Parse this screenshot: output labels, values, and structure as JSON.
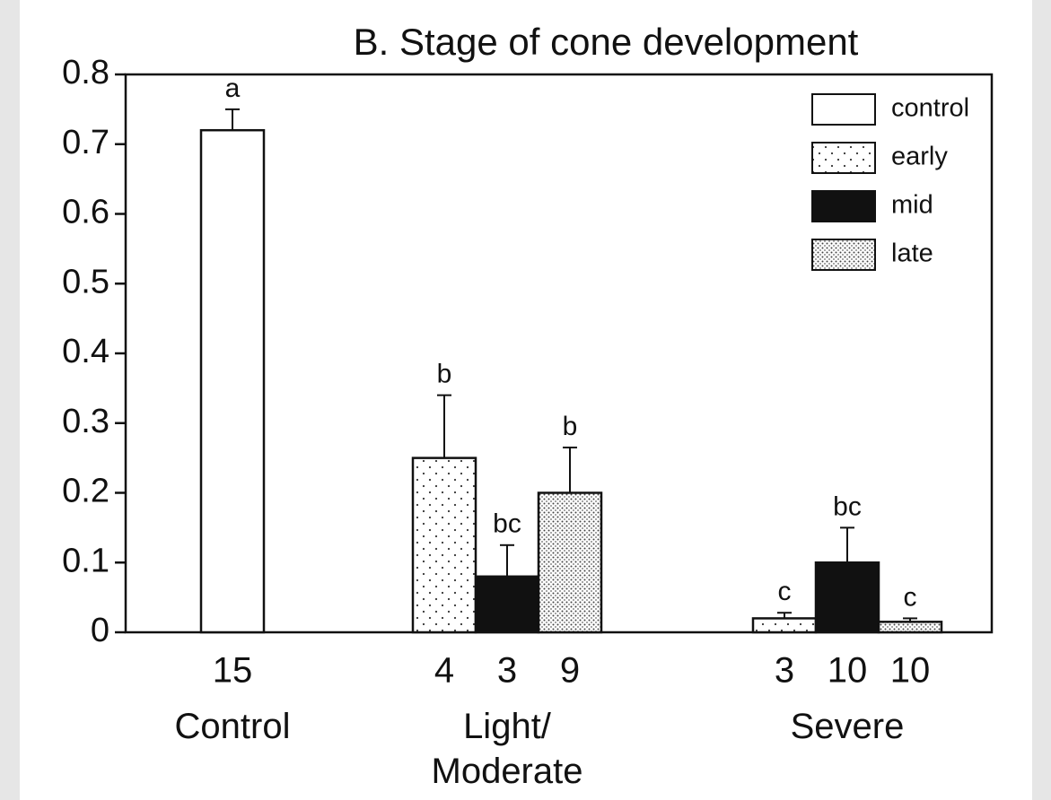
{
  "chart_data": {
    "type": "bar",
    "title": "B.  Stage of cone development",
    "categories": [
      "Control",
      "Light/\nModerate",
      "Severe"
    ],
    "series": [
      {
        "name": "control",
        "color": "#ffffff",
        "pattern": "none",
        "values": [
          0.72,
          null,
          null
        ],
        "errors": [
          0.03,
          null,
          null
        ],
        "letters": [
          "a",
          null,
          null
        ],
        "n": [
          15,
          null,
          null
        ]
      },
      {
        "name": "early",
        "color": "#ffffff",
        "pattern": "sparse-dots",
        "values": [
          null,
          0.25,
          0.02
        ],
        "errors": [
          null,
          0.09,
          0.008
        ],
        "letters": [
          null,
          "b",
          "c"
        ],
        "n": [
          null,
          4,
          3
        ]
      },
      {
        "name": "mid",
        "color": "#111111",
        "pattern": "none",
        "values": [
          null,
          0.08,
          0.1
        ],
        "errors": [
          null,
          0.045,
          0.05
        ],
        "letters": [
          null,
          "bc",
          "bc"
        ],
        "n": [
          null,
          3,
          10
        ]
      },
      {
        "name": "late",
        "color": "#ffffff",
        "pattern": "dense-dots",
        "values": [
          null,
          0.2,
          0.015
        ],
        "errors": [
          null,
          0.065,
          0.005
        ],
        "letters": [
          null,
          "b",
          "c"
        ],
        "n": [
          null,
          9,
          10
        ]
      }
    ],
    "ylim": [
      0,
      0.8
    ],
    "yticks": [
      0,
      0.1,
      0.2,
      0.3,
      0.4,
      0.5,
      0.6,
      0.7,
      0.8
    ],
    "legend": "upper right"
  }
}
